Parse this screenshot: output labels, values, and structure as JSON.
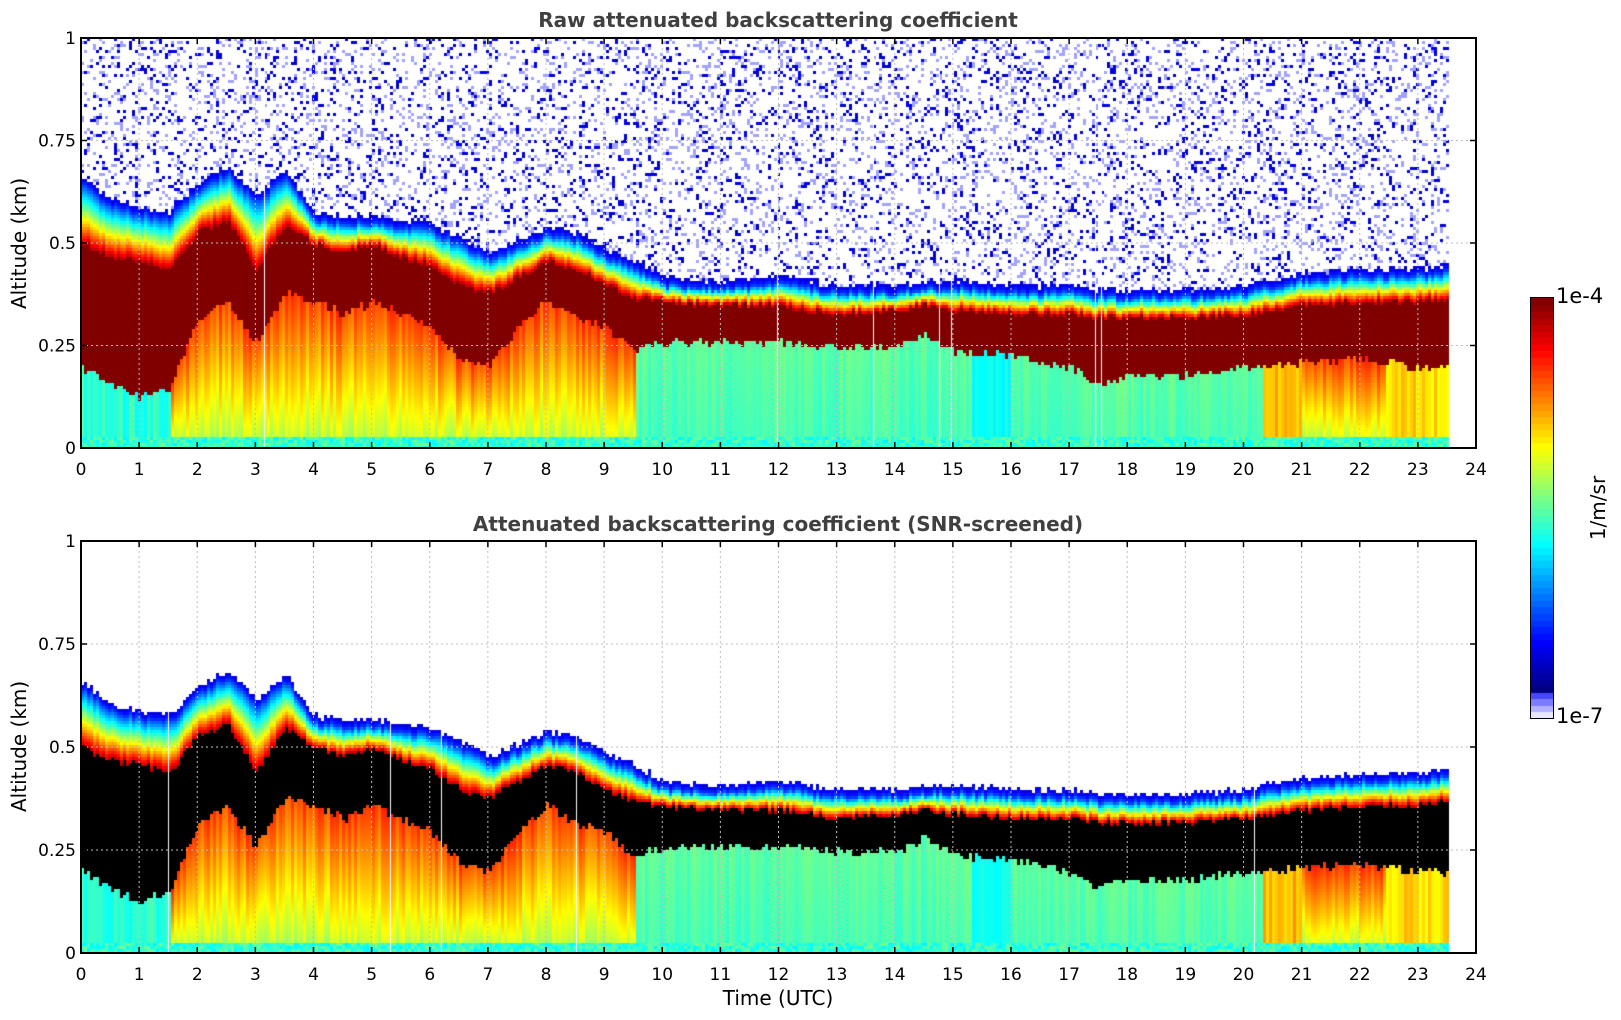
{
  "chart_data": [
    {
      "type": "heatmap",
      "title": "Raw attenuated backscattering coefficient",
      "xlabel": "",
      "ylabel": "Altitude (km)",
      "xlim": [
        0,
        24
      ],
      "ylim": [
        0,
        1
      ],
      "x_ticks": [
        "0",
        "1",
        "2",
        "3",
        "4",
        "5",
        "6",
        "7",
        "8",
        "9",
        "10",
        "11",
        "12",
        "13",
        "14",
        "15",
        "16",
        "17",
        "18",
        "19",
        "20",
        "21",
        "22",
        "23",
        "24"
      ],
      "y_ticks": [
        "0",
        "0.25",
        "0.5",
        "0.75",
        "1"
      ],
      "grid": true,
      "data_end_hour": 23.5,
      "screened": false,
      "layer_profile": {
        "hours": [
          0,
          0.5,
          1,
          1.5,
          2,
          2.5,
          3,
          3.5,
          4,
          4.5,
          5,
          5.5,
          6,
          6.5,
          7,
          7.5,
          8,
          8.5,
          9,
          9.5,
          10,
          11,
          12,
          13,
          14,
          14.5,
          15,
          16,
          17,
          17.5,
          18,
          19,
          20,
          21,
          22,
          23,
          23.5
        ],
        "top_km": [
          0.64,
          0.59,
          0.57,
          0.56,
          0.63,
          0.67,
          0.6,
          0.66,
          0.56,
          0.55,
          0.55,
          0.54,
          0.53,
          0.5,
          0.46,
          0.49,
          0.52,
          0.51,
          0.47,
          0.44,
          0.4,
          0.39,
          0.4,
          0.38,
          0.38,
          0.39,
          0.39,
          0.38,
          0.38,
          0.37,
          0.37,
          0.37,
          0.38,
          0.41,
          0.42,
          0.42,
          0.43
        ],
        "peak_top_km": [
          0.5,
          0.47,
          0.46,
          0.44,
          0.53,
          0.56,
          0.44,
          0.55,
          0.5,
          0.48,
          0.5,
          0.47,
          0.45,
          0.4,
          0.38,
          0.42,
          0.46,
          0.44,
          0.4,
          0.37,
          0.36,
          0.35,
          0.35,
          0.33,
          0.34,
          0.35,
          0.34,
          0.33,
          0.33,
          0.32,
          0.32,
          0.32,
          0.33,
          0.35,
          0.36,
          0.36,
          0.37
        ],
        "peak_base_km": [
          0.2,
          0.16,
          0.13,
          0.15,
          0.32,
          0.36,
          0.26,
          0.38,
          0.36,
          0.33,
          0.36,
          0.33,
          0.3,
          0.22,
          0.2,
          0.3,
          0.36,
          0.32,
          0.3,
          0.24,
          0.26,
          0.26,
          0.26,
          0.25,
          0.25,
          0.28,
          0.24,
          0.23,
          0.2,
          0.16,
          0.18,
          0.18,
          0.2,
          0.21,
          0.22,
          0.2,
          0.2
        ]
      }
    },
    {
      "type": "heatmap",
      "title": "Attenuated backscattering coefficient (SNR-screened)",
      "xlabel": "Time (UTC)",
      "ylabel": "Altitude (km)",
      "xlim": [
        0,
        24
      ],
      "ylim": [
        0,
        1
      ],
      "x_ticks": [
        "0",
        "1",
        "2",
        "3",
        "4",
        "5",
        "6",
        "7",
        "8",
        "9",
        "10",
        "11",
        "12",
        "13",
        "14",
        "15",
        "16",
        "17",
        "18",
        "19",
        "20",
        "21",
        "22",
        "23",
        "24"
      ],
      "y_ticks": [
        "0",
        "0.25",
        "0.5",
        "0.75",
        "1"
      ],
      "grid": true,
      "data_end_hour": 23.5,
      "screened": true
    }
  ],
  "colorbar": {
    "max_label": "1e-4",
    "min_label": "1e-7",
    "unit_label": "1/m/sr",
    "min_value": 1e-07,
    "max_value": 0.0001,
    "scale": "log",
    "colormap": "jet-with-white-low"
  },
  "colors": {
    "axis": "#000000",
    "title": "#404040",
    "grid": "#bfbfbf",
    "saturated_screened": "#000000"
  }
}
